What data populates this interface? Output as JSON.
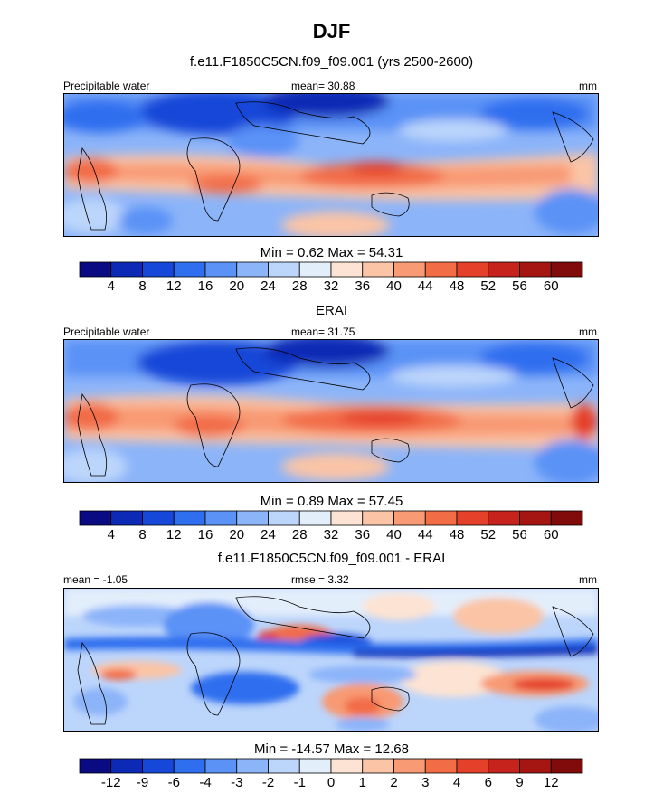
{
  "figure": {
    "title": "DJF",
    "subtitle": "f.e11.F1850C5CN.f09_f09.001 (yrs 2500-2600)"
  },
  "chart_data": [
    {
      "type": "heatmap",
      "panel": "model",
      "title": "",
      "left_label": "Precipitable water",
      "center_label": "mean=  30.88",
      "right_label": "mm",
      "minmax": "Min =   0.62 Max =  54.31",
      "variable": "Precipitable water",
      "units": "mm",
      "mean": 30.88,
      "min": 0.62,
      "max": 54.31,
      "levels": [
        "4",
        "8",
        "12",
        "16",
        "20",
        "24",
        "28",
        "32",
        "36",
        "40",
        "44",
        "48",
        "52",
        "56",
        "60"
      ],
      "colors": [
        "#0a0a83",
        "#0c2ab5",
        "#1547d8",
        "#2f6eef",
        "#5a92f6",
        "#8cb4f9",
        "#bcd5fb",
        "#e3eefb",
        "#fde3d3",
        "#fbc4a6",
        "#f89a73",
        "#f26c46",
        "#e5402a",
        "#c5231b",
        "#a51612",
        "#800b0a"
      ]
    },
    {
      "type": "heatmap",
      "panel": "obs",
      "title": "ERAI",
      "left_label": "Precipitable water",
      "center_label": "mean=  31.75",
      "right_label": "mm",
      "minmax": "Min =   0.89 Max =  57.45",
      "variable": "Precipitable water",
      "units": "mm",
      "mean": 31.75,
      "min": 0.89,
      "max": 57.45,
      "levels": [
        "4",
        "8",
        "12",
        "16",
        "20",
        "24",
        "28",
        "32",
        "36",
        "40",
        "44",
        "48",
        "52",
        "56",
        "60"
      ],
      "colors": [
        "#0a0a83",
        "#0c2ab5",
        "#1547d8",
        "#2f6eef",
        "#5a92f6",
        "#8cb4f9",
        "#bcd5fb",
        "#e3eefb",
        "#fde3d3",
        "#fbc4a6",
        "#f89a73",
        "#f26c46",
        "#e5402a",
        "#c5231b",
        "#a51612",
        "#800b0a"
      ]
    },
    {
      "type": "heatmap",
      "panel": "diff",
      "title": "f.e11.F1850C5CN.f09_f09.001 - ERAI",
      "left_label": "mean =  -1.05",
      "center_label": "rmse =   3.32",
      "right_label": "mm",
      "minmax": "Min = -14.57 Max =  12.68",
      "units": "mm",
      "mean": -1.05,
      "rmse": 3.32,
      "min": -14.57,
      "max": 12.68,
      "levels": [
        "-12",
        "-9",
        "-6",
        "-4",
        "-3",
        "-2",
        "-1",
        "0",
        "1",
        "2",
        "3",
        "4",
        "6",
        "9",
        "12"
      ],
      "colors": [
        "#0a0a83",
        "#0c2ab5",
        "#1547d8",
        "#2f6eef",
        "#5a92f6",
        "#8cb4f9",
        "#bcd5fb",
        "#e3eefb",
        "#fde3d3",
        "#fbc4a6",
        "#f89a73",
        "#f26c46",
        "#e5402a",
        "#c5231b",
        "#a51612",
        "#800b0a"
      ]
    }
  ]
}
